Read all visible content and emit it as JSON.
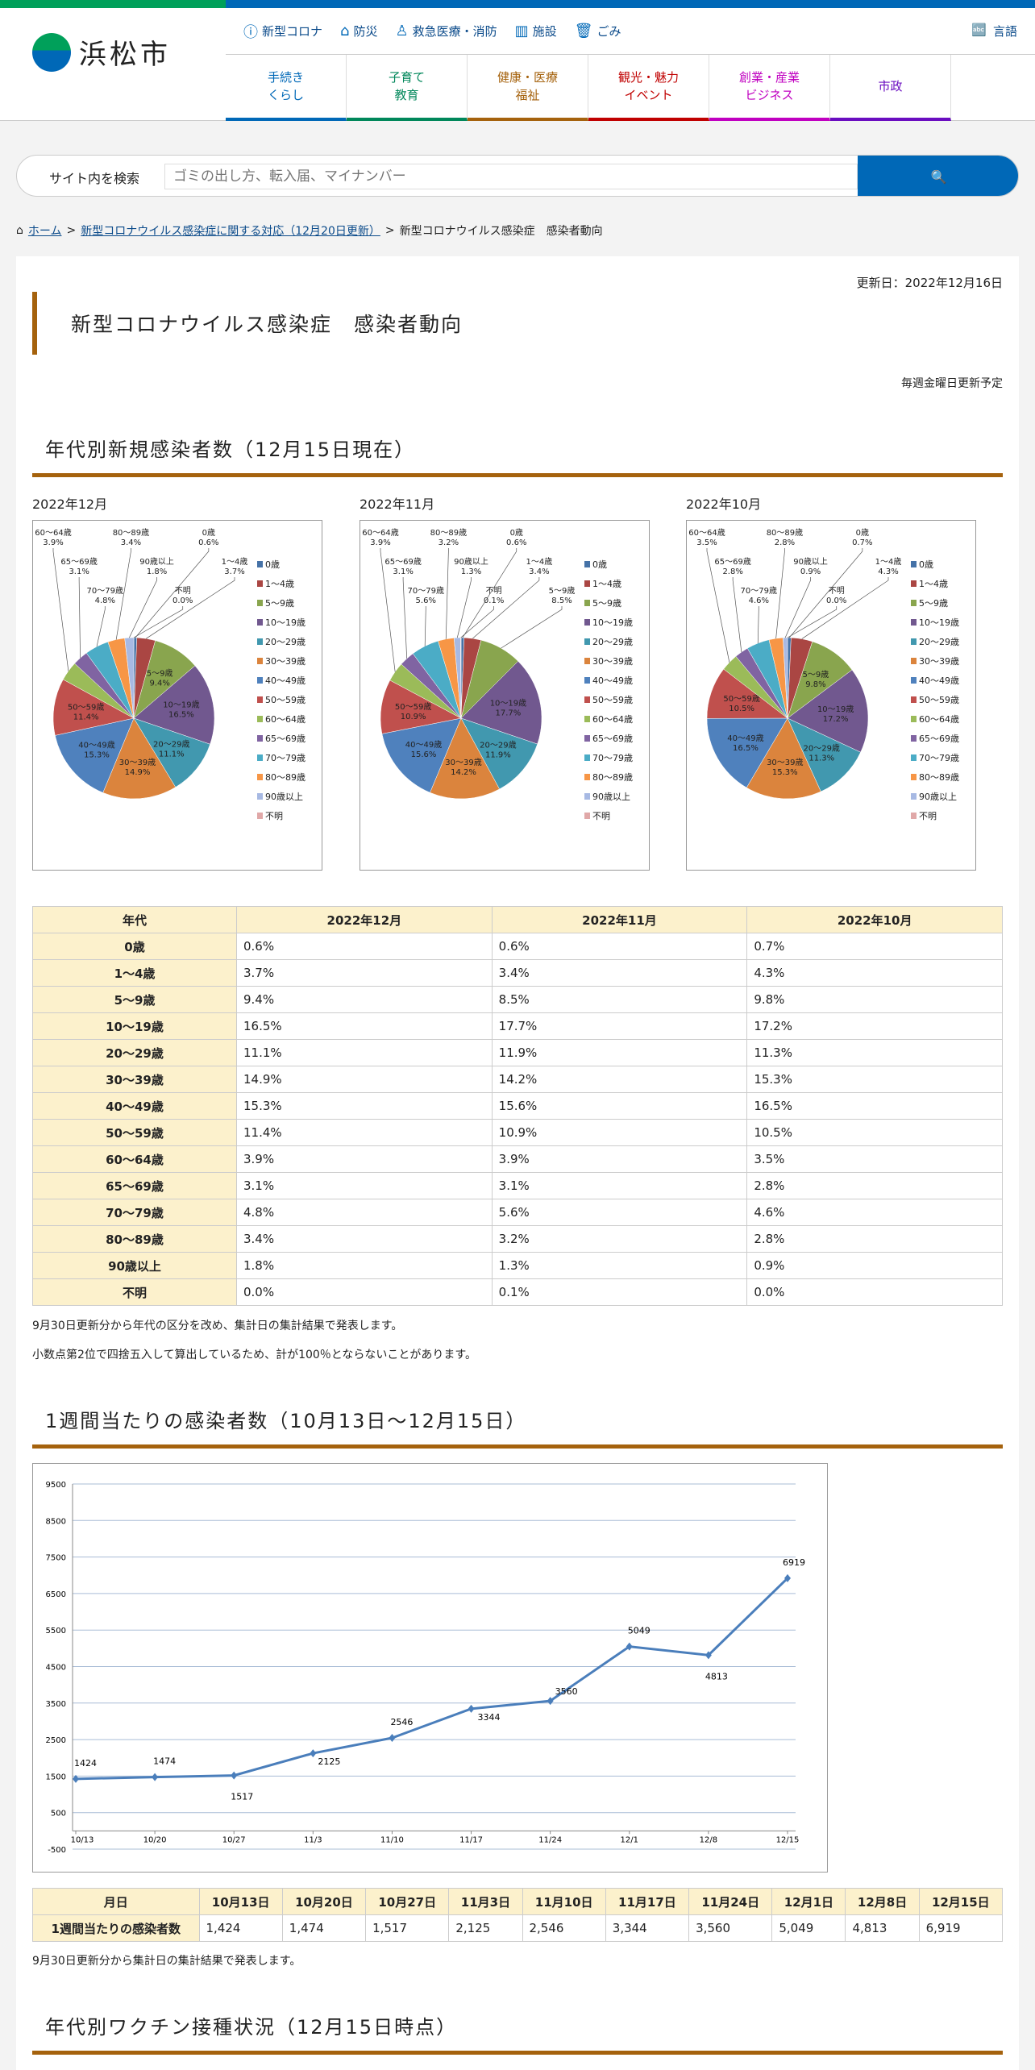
{
  "header": {
    "logo": "浜松市",
    "util": [
      {
        "icon": "alert-icon",
        "label": "新型コロナ"
      },
      {
        "icon": "house-icon",
        "label": "防災"
      },
      {
        "icon": "person-icon",
        "label": "救急医療・消防"
      },
      {
        "icon": "building-icon",
        "label": "施設"
      },
      {
        "icon": "trash-icon",
        "label": "ごみ"
      }
    ],
    "lang": "言語",
    "nav": [
      {
        "label": "手続き\nくらし",
        "color": "#0068b7",
        "text": "#0068b7"
      },
      {
        "label": "子育て\n教育",
        "color": "#00875a",
        "text": "#00875a"
      },
      {
        "label": "健康・医療\n福祉",
        "color": "#a5620d",
        "text": "#a5620d"
      },
      {
        "label": "観光・魅力\nイベント",
        "color": "#c00000",
        "text": "#c00000"
      },
      {
        "label": "創業・産業\nビジネス",
        "color": "#c000c0",
        "text": "#c000c0"
      },
      {
        "label": "市政",
        "color": "#6a0dc0",
        "text": "#6a0dc0"
      }
    ]
  },
  "search": {
    "label": "サイト内を検索",
    "placeholder": "ゴミの出し方、転入届、マイナンバー",
    "button_icon": "search-icon"
  },
  "breadcrumb": [
    "ホーム",
    "新型コロナウイルス感染症に関する対応（12月20日更新）",
    "新型コロナウイルス感染症　感染者動向"
  ],
  "updated": "更新日：2022年12月16日",
  "title": "新型コロナウイルス感染症　感染者動向",
  "schedule": "毎週金曜日更新予定",
  "section1": "年代別新規感染者数（12月15日現在）",
  "section2": "1週間当たりの感染者数（10月13日～12月15日）",
  "section3": "年代別ワクチン接種状況（12月15日時点）",
  "colors": [
    "#4572a7",
    "#aa4643",
    "#89a54e",
    "#71588f",
    "#4198af",
    "#db843d",
    "#4f81bd",
    "#c0504d",
    "#9bbb59",
    "#8064a2",
    "#4bacc6",
    "#f79646",
    "#a7b9e3",
    "#e0a8a8"
  ],
  "chart_data": [
    {
      "type": "pie",
      "title": "2022年12月",
      "categories": [
        "0歳",
        "1～4歳",
        "5～9歳",
        "10～19歳",
        "20～29歳",
        "30～39歳",
        "40～49歳",
        "50～59歳",
        "60～64歳",
        "65～69歳",
        "70～79歳",
        "80～89歳",
        "90歳以上",
        "不明"
      ],
      "values": [
        0.6,
        3.7,
        9.4,
        16.5,
        11.1,
        14.9,
        15.3,
        11.4,
        3.9,
        3.1,
        4.8,
        3.4,
        1.8,
        0.0
      ],
      "legend": "right"
    },
    {
      "type": "pie",
      "title": "2022年11月",
      "categories": [
        "0歳",
        "1～4歳",
        "5～9歳",
        "10～19歳",
        "20～29歳",
        "30～39歳",
        "40～49歳",
        "50～59歳",
        "60～64歳",
        "65～69歳",
        "70～79歳",
        "80～89歳",
        "90歳以上",
        "不明"
      ],
      "values": [
        0.6,
        3.4,
        8.5,
        17.7,
        11.9,
        14.2,
        15.6,
        10.9,
        3.9,
        3.1,
        5.6,
        3.2,
        1.3,
        0.1
      ],
      "legend": "right"
    },
    {
      "type": "pie",
      "title": "2022年10月",
      "categories": [
        "0歳",
        "1～4歳",
        "5～9歳",
        "10～19歳",
        "20～29歳",
        "30～39歳",
        "40～49歳",
        "50～59歳",
        "60～64歳",
        "65～69歳",
        "70～79歳",
        "80～89歳",
        "90歳以上",
        "不明"
      ],
      "values": [
        0.7,
        4.3,
        9.8,
        17.2,
        11.3,
        15.3,
        16.5,
        10.5,
        3.5,
        2.8,
        4.6,
        2.8,
        0.9,
        0.0
      ],
      "legend": "right"
    },
    {
      "type": "line",
      "categories": [
        "10/13",
        "10/20",
        "10/27",
        "11/3",
        "11/10",
        "11/17",
        "11/24",
        "12/1",
        "12/8",
        "12/15"
      ],
      "values": [
        1424,
        1474,
        1517,
        2125,
        2546,
        3344,
        3560,
        5049,
        4813,
        6919
      ],
      "ylim": [
        -500,
        9500
      ],
      "yticks": [
        -500,
        500,
        1500,
        2500,
        3500,
        4500,
        5500,
        6500,
        7500,
        8500,
        9500
      ],
      "grid": true,
      "color": "#4a7ebb"
    }
  ],
  "age_table": {
    "headers": [
      "年代",
      "2022年12月",
      "2022年11月",
      "2022年10月"
    ],
    "rows": [
      [
        "0歳",
        "0.6%",
        "0.6%",
        "0.7%"
      ],
      [
        "1～4歳",
        "3.7%",
        "3.4%",
        "4.3%"
      ],
      [
        "5～9歳",
        "9.4%",
        "8.5%",
        "9.8%"
      ],
      [
        "10～19歳",
        "16.5%",
        "17.7%",
        "17.2%"
      ],
      [
        "20～29歳",
        "11.1%",
        "11.9%",
        "11.3%"
      ],
      [
        "30～39歳",
        "14.9%",
        "14.2%",
        "15.3%"
      ],
      [
        "40～49歳",
        "15.3%",
        "15.6%",
        "16.5%"
      ],
      [
        "50～59歳",
        "11.4%",
        "10.9%",
        "10.5%"
      ],
      [
        "60～64歳",
        "3.9%",
        "3.9%",
        "3.5%"
      ],
      [
        "65～69歳",
        "3.1%",
        "3.1%",
        "2.8%"
      ],
      [
        "70～79歳",
        "4.8%",
        "5.6%",
        "4.6%"
      ],
      [
        "80～89歳",
        "3.4%",
        "3.2%",
        "2.8%"
      ],
      [
        "90歳以上",
        "1.8%",
        "1.3%",
        "0.9%"
      ],
      [
        "不明",
        "0.0%",
        "0.1%",
        "0.0%"
      ]
    ]
  },
  "notes1": [
    "9月30日更新分から年代の区分を改め、集計日の集計結果で発表します。",
    "小数点第2位で四捨五入して算出しているため、計が100％とならないことがあります。"
  ],
  "week_table": {
    "headers": [
      "月日",
      "10月13日",
      "10月20日",
      "10月27日",
      "11月3日",
      "11月10日",
      "11月17日",
      "11月24日",
      "12月1日",
      "12月8日",
      "12月15日"
    ],
    "row": [
      "1週間当たりの感染者数",
      "1,424",
      "1,474",
      "1,517",
      "2,125",
      "2,546",
      "3,344",
      "3,560",
      "5,049",
      "4,813",
      "6,919"
    ]
  },
  "notes2": "9月30日更新分から集計日の集計結果で発表します。"
}
